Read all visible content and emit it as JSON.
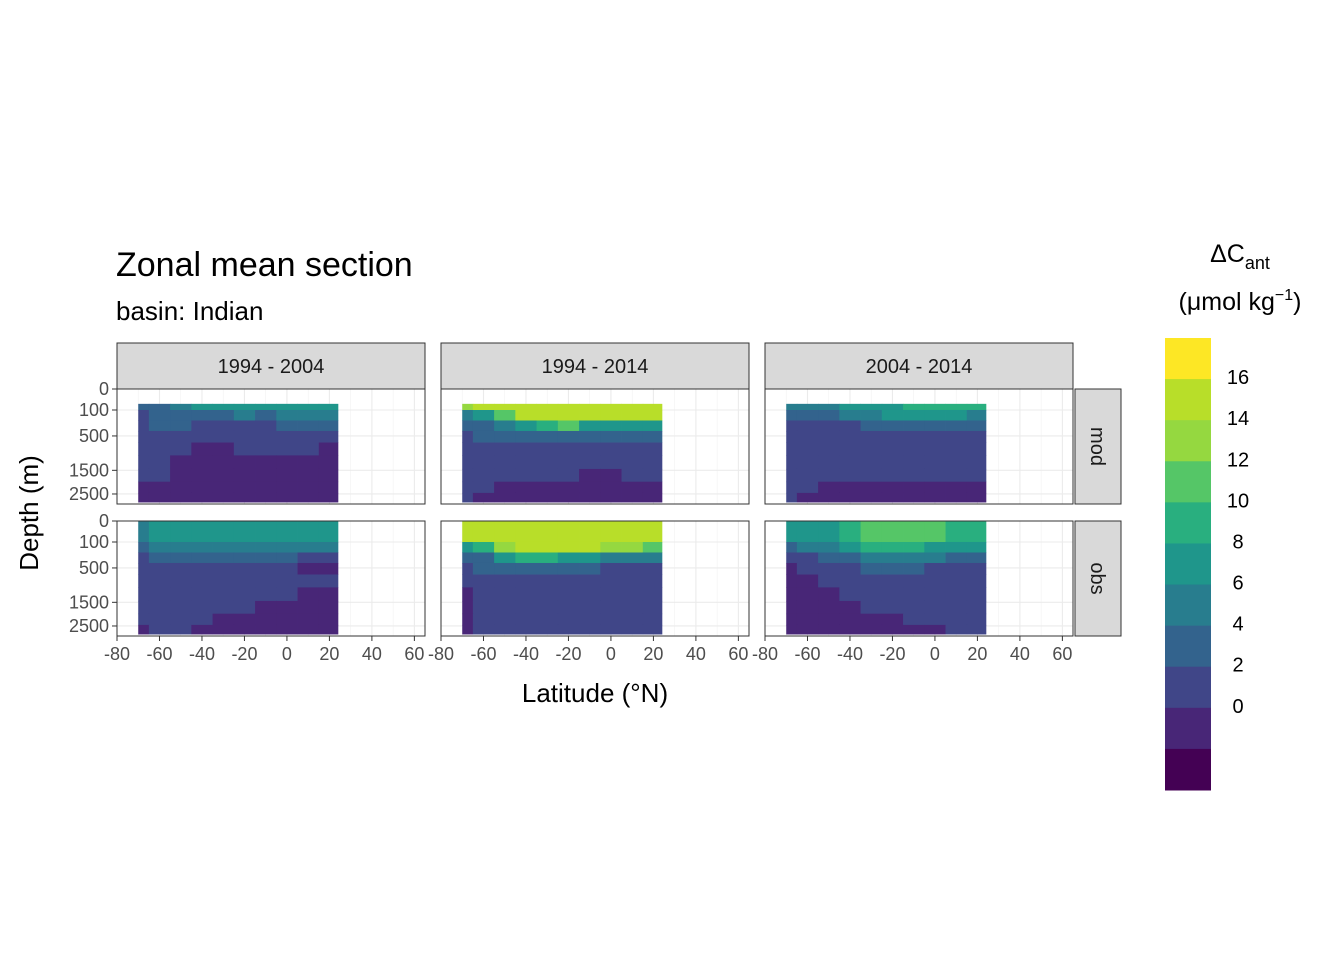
{
  "title": "Zonal mean section",
  "subtitle": "basin: Indian",
  "x_axis_title": "Latitude (°N)",
  "y_axis_title": "Depth (m)",
  "legend": {
    "title_main": "ΔC",
    "title_sub": "ant",
    "unit_prefix": "(μmol kg",
    "unit_sup": "−1",
    "unit_suffix": ")",
    "labels": [
      "16",
      "14",
      "12",
      "10",
      "8",
      "6",
      "4",
      "2",
      "0"
    ],
    "colors": [
      "#440154",
      "#482677",
      "#404688",
      "#33638D",
      "#287D8E",
      "#1F968B",
      "#29AF7F",
      "#55C667",
      "#95D840",
      "#B8DE29",
      "#FDE725"
    ]
  },
  "chart_data": {
    "type": "heatmap",
    "title": "Zonal mean section",
    "subtitle": "basin: Indian",
    "xlabel": "Latitude (°N)",
    "ylabel": "Depth (m)",
    "xlim": [
      -80,
      65
    ],
    "ylim": [
      3000,
      0
    ],
    "x_ticks": [
      "-80",
      "-60",
      "-40",
      "-20",
      "0",
      "20",
      "40",
      "60"
    ],
    "x_tick_values": [
      -80,
      -60,
      -40,
      -20,
      0,
      20,
      40,
      60
    ],
    "y_ticks": [
      "0",
      "100",
      "500",
      "1500",
      "2500"
    ],
    "y_tick_values": [
      0,
      100,
      500,
      1500,
      2500
    ],
    "grid": true,
    "legend_position": "right",
    "col_facets": [
      "1994 - 2004",
      "1994 - 2014",
      "2004 - 2014"
    ],
    "row_facets": [
      "mod",
      "obs"
    ],
    "color_scale": {
      "breaks": [
        0,
        2,
        4,
        6,
        8,
        10,
        12,
        14,
        16
      ],
      "palette": "viridis"
    },
    "lat": [
      -70,
      -60,
      -50,
      -40,
      -30,
      -20,
      -10,
      0,
      10,
      20
    ],
    "depth": [
      50,
      150,
      300,
      500,
      800,
      1200,
      1700,
      2200,
      2700
    ],
    "panels": [
      {
        "row": "mod",
        "col": "1994 - 2004",
        "values": [
          [
            5,
            5,
            6,
            8,
            8,
            9,
            8,
            8,
            8,
            9
          ],
          [
            3,
            5,
            5,
            5,
            5,
            6,
            5,
            6,
            6,
            6
          ],
          [
            3,
            4,
            4,
            3,
            3,
            3,
            3,
            4,
            4,
            4
          ],
          [
            3,
            3,
            3,
            2,
            2,
            2,
            2,
            2,
            2,
            2
          ],
          [
            2,
            3,
            2,
            1,
            1,
            2,
            2,
            2,
            2,
            1
          ],
          [
            2,
            2,
            1,
            1,
            1,
            1,
            1,
            0,
            0,
            0
          ],
          [
            2,
            2,
            1,
            1,
            1,
            1,
            1,
            0,
            0,
            0
          ],
          [
            1,
            1,
            1,
            1,
            1,
            1,
            0,
            0,
            0,
            0
          ],
          [
            1,
            1,
            1,
            0,
            1,
            1,
            0,
            0,
            0,
            0
          ]
        ]
      },
      {
        "row": "mod",
        "col": "1994 - 2014",
        "values": [
          [
            14,
            16,
            16,
            16,
            16,
            16,
            16,
            16,
            16,
            16
          ],
          [
            6,
            8,
            12,
            16,
            16,
            16,
            16,
            16,
            16,
            16
          ],
          [
            4,
            5,
            7,
            8,
            11,
            12,
            9,
            8,
            9,
            9
          ],
          [
            3,
            4,
            4,
            4,
            5,
            5,
            4,
            4,
            4,
            4
          ],
          [
            3,
            3,
            3,
            2,
            2,
            2,
            2,
            2,
            2,
            2
          ],
          [
            3,
            2,
            2,
            2,
            2,
            2,
            2,
            2,
            2,
            2
          ],
          [
            2,
            2,
            2,
            2,
            2,
            2,
            1,
            1,
            2,
            2
          ],
          [
            2,
            2,
            1,
            1,
            1,
            1,
            1,
            1,
            1,
            1
          ],
          [
            2,
            1,
            1,
            1,
            1,
            1,
            1,
            1,
            1,
            1
          ]
        ]
      },
      {
        "row": "mod",
        "col": "2004 - 2014",
        "values": [
          [
            6,
            6,
            7,
            8,
            9,
            9,
            10,
            10,
            11,
            10
          ],
          [
            4,
            5,
            5,
            6,
            7,
            8,
            8,
            8,
            8,
            7
          ],
          [
            3,
            3,
            3,
            3,
            4,
            4,
            5,
            5,
            5,
            4
          ],
          [
            3,
            3,
            2,
            2,
            2,
            3,
            3,
            3,
            3,
            3
          ],
          [
            3,
            3,
            2,
            2,
            2,
            2,
            2,
            2,
            2,
            2
          ],
          [
            2,
            2,
            2,
            2,
            2,
            2,
            2,
            2,
            2,
            2
          ],
          [
            2,
            2,
            2,
            2,
            2,
            2,
            2,
            2,
            2,
            2
          ],
          [
            2,
            2,
            1,
            1,
            1,
            1,
            1,
            1,
            1,
            1
          ],
          [
            2,
            1,
            1,
            1,
            1,
            1,
            1,
            1,
            1,
            1
          ]
        ]
      },
      {
        "row": "obs",
        "col": "1994 - 2004",
        "values": [
          [
            6,
            8,
            8,
            8,
            8,
            8,
            8,
            8,
            8,
            8
          ],
          [
            5,
            6,
            6,
            7,
            7,
            6,
            6,
            6,
            6,
            6
          ],
          [
            3,
            4,
            4,
            4,
            5,
            4,
            4,
            4,
            3,
            3
          ],
          [
            3,
            3,
            3,
            3,
            3,
            3,
            3,
            2,
            1,
            1
          ],
          [
            2,
            2,
            2,
            2,
            2,
            2,
            2,
            2,
            2,
            2
          ],
          [
            2,
            2,
            2,
            2,
            2,
            2,
            2,
            2,
            1,
            1
          ],
          [
            2,
            2,
            2,
            2,
            2,
            2,
            1,
            1,
            0,
            0
          ],
          [
            2,
            2,
            2,
            2,
            1,
            1,
            1,
            0,
            0,
            0
          ],
          [
            1,
            2,
            2,
            1,
            1,
            1,
            0,
            0,
            0,
            0
          ]
        ]
      },
      {
        "row": "obs",
        "col": "1994 - 2014",
        "values": [
          [
            16,
            16,
            16,
            16,
            16,
            16,
            16,
            16,
            16,
            16
          ],
          [
            8,
            10,
            14,
            16,
            16,
            16,
            16,
            14,
            14,
            12
          ],
          [
            4,
            5,
            8,
            10,
            10,
            9,
            8,
            7,
            6,
            6
          ],
          [
            2,
            4,
            4,
            5,
            5,
            4,
            4,
            3,
            3,
            3
          ],
          [
            2,
            3,
            3,
            3,
            3,
            3,
            3,
            3,
            2,
            2
          ],
          [
            1,
            3,
            3,
            3,
            3,
            3,
            3,
            3,
            2,
            2
          ],
          [
            1,
            2,
            3,
            3,
            3,
            3,
            3,
            2,
            2,
            2
          ],
          [
            1,
            2,
            2,
            2,
            2,
            2,
            2,
            2,
            2,
            2
          ],
          [
            1,
            2,
            2,
            2,
            2,
            2,
            2,
            2,
            2,
            2
          ]
        ]
      },
      {
        "row": "obs",
        "col": "2004 - 2014",
        "values": [
          [
            8,
            9,
            9,
            10,
            12,
            12,
            12,
            12,
            11,
            11
          ],
          [
            4,
            6,
            7,
            9,
            10,
            10,
            10,
            9,
            9,
            9
          ],
          [
            2,
            3,
            4,
            5,
            6,
            6,
            6,
            6,
            5,
            5
          ],
          [
            1,
            2,
            3,
            3,
            4,
            4,
            4,
            3,
            3,
            3
          ],
          [
            0,
            1,
            2,
            2,
            3,
            3,
            3,
            3,
            2,
            2
          ],
          [
            0,
            1,
            1,
            2,
            2,
            3,
            3,
            2,
            2,
            2
          ],
          [
            0,
            0,
            1,
            1,
            2,
            2,
            2,
            2,
            2,
            2
          ],
          [
            0,
            0,
            0,
            1,
            1,
            1,
            2,
            2,
            2,
            2
          ],
          [
            0,
            0,
            0,
            0,
            1,
            1,
            1,
            1,
            2,
            2
          ]
        ]
      }
    ]
  }
}
